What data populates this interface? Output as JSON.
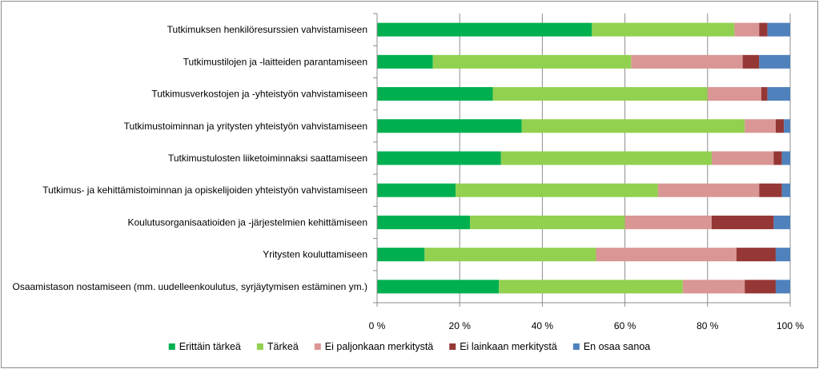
{
  "chart_data": {
    "type": "bar",
    "orientation": "horizontal",
    "stacked": true,
    "percent_stacked": true,
    "categories": [
      "Tutkimuksen henkilöresurssien vahvistamiseen",
      "Tutkimustilojen ja -laitteiden parantamiseen",
      "Tutkimusverkostojen ja -yhteistyön vahvistamiseen",
      "Tutkimustoiminnan ja yritysten yhteistyön vahvistamiseen",
      "Tutkimustulosten liiketoiminnaksi saattamiseen",
      "Tutkimus- ja kehittämistoiminnan ja opiskelijoiden yhteistyön vahvistamiseen",
      "Koulutusorganisaatioiden ja -järjestelmien kehittämiseen",
      "Yritysten kouluttamiseen",
      "Osaamistason nostamiseen (mm. uudelleenkoulutus, syrjäytymisen estäminen ym.)"
    ],
    "series": [
      {
        "name": "Erittäin tärkeä",
        "color": "#00b050",
        "values": [
          52,
          13.5,
          28,
          35,
          30,
          19,
          22.5,
          11.5,
          29.5
        ]
      },
      {
        "name": "Tärkeä",
        "color": "#92d050",
        "values": [
          34.5,
          48,
          52,
          54,
          51,
          49,
          37.5,
          41.5,
          44.5
        ]
      },
      {
        "name": "Ei paljonkaan merkitystä",
        "color": "#d99694",
        "values": [
          6,
          27,
          13,
          7.5,
          15,
          24.5,
          21,
          34,
          15
        ]
      },
      {
        "name": "Ei lainkaan merkitystä",
        "color": "#953735",
        "values": [
          2,
          4,
          1.5,
          2,
          2,
          5.5,
          15,
          9.5,
          7.5
        ]
      },
      {
        "name": "En osaa sanoa",
        "color": "#4f81bd",
        "values": [
          5.5,
          7.5,
          5.5,
          1.5,
          2,
          2,
          4,
          3.5,
          3.5
        ]
      }
    ],
    "xlim": [
      0,
      100
    ],
    "x_ticks": [
      "0 %",
      "20 %",
      "40 %",
      "60 %",
      "80 %",
      "100 %"
    ],
    "grid": "vertical",
    "legend_position": "bottom"
  }
}
